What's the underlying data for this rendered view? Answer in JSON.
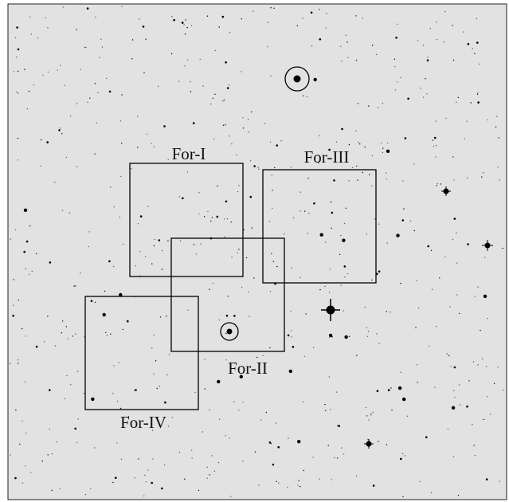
{
  "fields": [
    {
      "label": "For-I"
    },
    {
      "label": "For-II"
    },
    {
      "label": "For-III"
    },
    {
      "label": "For-IV"
    }
  ]
}
